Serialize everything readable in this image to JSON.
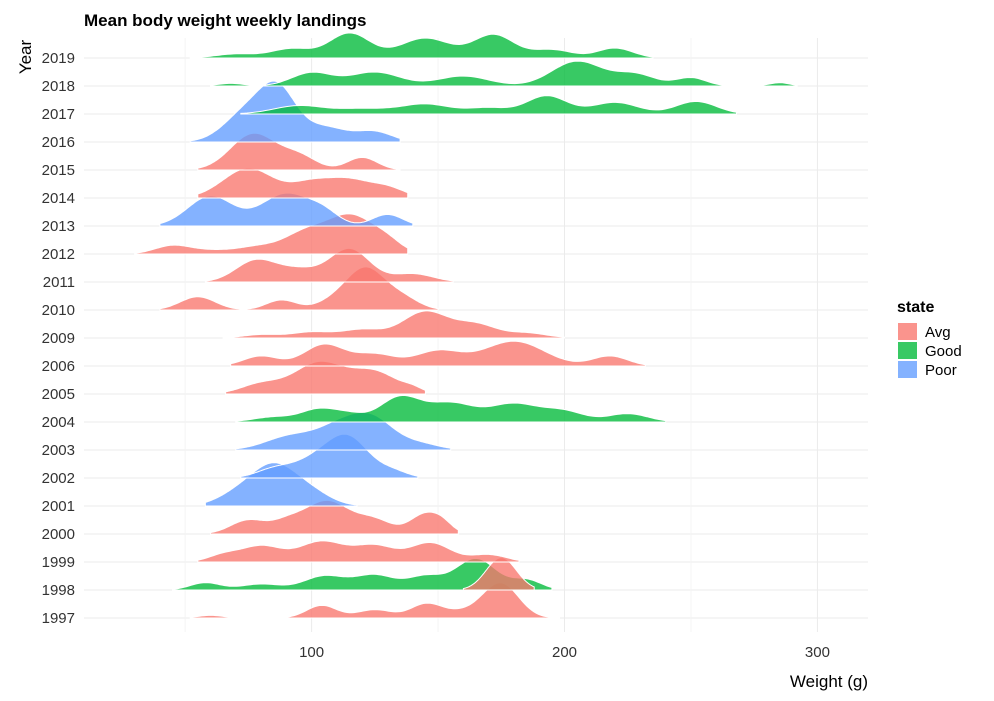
{
  "chart_data": {
    "type": "ridgeline",
    "title": "Mean body weight weekly landings",
    "xlabel": "Weight (g)",
    "ylabel": "Year",
    "xlim": [
      10,
      320
    ],
    "x_ticks": [
      100,
      200,
      300
    ],
    "grid": true,
    "legend": {
      "title": "state",
      "placement": "right",
      "entries": [
        {
          "name": "Avg",
          "color": "#F8766D"
        },
        {
          "name": "Good",
          "color": "#00BA38"
        },
        {
          "name": "Poor",
          "color": "#619CFF"
        }
      ]
    },
    "years": [
      "1997",
      "1998",
      "1999",
      "2000",
      "2001",
      "2002",
      "2003",
      "2004",
      "2005",
      "2006",
      "2009",
      "2010",
      "2011",
      "2012",
      "2013",
      "2014",
      "2015",
      "2016",
      "2017",
      "2018",
      "2019"
    ],
    "ridges": [
      {
        "year": "1997",
        "state": "Avg",
        "min": 52,
        "max": 198,
        "peaks": [
          [
            60,
            0.08,
            5
          ],
          [
            104,
            0.38,
            6
          ],
          [
            125,
            0.25,
            7
          ],
          [
            145,
            0.38,
            6
          ],
          [
            175,
            1.0,
            7
          ],
          [
            160,
            0.2,
            10
          ]
        ]
      },
      {
        "year": "1998",
        "state": "Good",
        "min": 45,
        "max": 195,
        "peaks": [
          [
            58,
            0.22,
            6
          ],
          [
            80,
            0.18,
            8
          ],
          [
            105,
            0.42,
            8
          ],
          [
            125,
            0.45,
            8
          ],
          [
            145,
            0.4,
            7
          ],
          [
            165,
            0.95,
            8
          ],
          [
            185,
            0.3,
            6
          ]
        ]
      },
      {
        "year": "1998",
        "state": "Avg",
        "min": 160,
        "max": 188,
        "peaks": [
          [
            175,
            0.98,
            6
          ]
        ]
      },
      {
        "year": "1999",
        "state": "Avg",
        "min": 55,
        "max": 182,
        "peaks": [
          [
            65,
            0.2,
            6
          ],
          [
            80,
            0.48,
            8
          ],
          [
            104,
            0.62,
            9
          ],
          [
            125,
            0.48,
            8
          ],
          [
            147,
            0.58,
            8
          ],
          [
            170,
            0.22,
            7
          ]
        ]
      },
      {
        "year": "2000",
        "state": "Avg",
        "min": 60,
        "max": 158,
        "peaks": [
          [
            75,
            0.42,
            7
          ],
          [
            90,
            0.3,
            6
          ],
          [
            106,
            1.0,
            9
          ],
          [
            125,
            0.4,
            7
          ],
          [
            145,
            0.6,
            6
          ],
          [
            152,
            0.2,
            4
          ]
        ]
      },
      {
        "year": "2001",
        "state": "Poor",
        "min": 58,
        "max": 118,
        "peaks": [
          [
            70,
            0.3,
            8
          ],
          [
            85,
            1.2,
            9
          ],
          [
            100,
            0.35,
            8
          ]
        ]
      },
      {
        "year": "2002",
        "state": "Poor",
        "min": 72,
        "max": 142,
        "peaks": [
          [
            85,
            0.25,
            7
          ],
          [
            102,
            0.55,
            9
          ],
          [
            115,
            1.1,
            8
          ],
          [
            132,
            0.2,
            6
          ]
        ]
      },
      {
        "year": "2003",
        "state": "Poor",
        "min": 70,
        "max": 155,
        "peaks": [
          [
            92,
            0.42,
            10
          ],
          [
            112,
            0.72,
            9
          ],
          [
            125,
            0.78,
            8
          ],
          [
            142,
            0.2,
            8
          ]
        ]
      },
      {
        "year": "2004",
        "state": "Good",
        "min": 70,
        "max": 240,
        "peaks": [
          [
            85,
            0.15,
            8
          ],
          [
            103,
            0.38,
            7
          ],
          [
            115,
            0.2,
            6
          ],
          [
            135,
            0.75,
            8
          ],
          [
            155,
            0.55,
            9
          ],
          [
            180,
            0.55,
            10
          ],
          [
            200,
            0.3,
            8
          ],
          [
            225,
            0.25,
            8
          ]
        ]
      },
      {
        "year": "2005",
        "state": "Avg",
        "min": 66,
        "max": 145,
        "peaks": [
          [
            80,
            0.3,
            8
          ],
          [
            103,
            0.95,
            10
          ],
          [
            125,
            0.65,
            9
          ],
          [
            140,
            0.12,
            4
          ]
        ]
      },
      {
        "year": "2006",
        "state": "Avg",
        "min": 68,
        "max": 232,
        "peaks": [
          [
            80,
            0.3,
            7
          ],
          [
            105,
            0.65,
            8
          ],
          [
            125,
            0.35,
            8
          ],
          [
            150,
            0.45,
            9
          ],
          [
            180,
            0.75,
            12
          ],
          [
            218,
            0.3,
            7
          ]
        ]
      },
      {
        "year": "2009",
        "state": "Avg",
        "min": 65,
        "max": 200,
        "peaks": [
          [
            80,
            0.1,
            7
          ],
          [
            100,
            0.18,
            8
          ],
          [
            120,
            0.25,
            8
          ],
          [
            145,
            0.8,
            9
          ],
          [
            165,
            0.4,
            8
          ],
          [
            185,
            0.15,
            8
          ]
        ]
      },
      {
        "year": "2010",
        "state": "Avg",
        "min": 40,
        "max": 150,
        "peaks": [
          [
            55,
            0.4,
            7
          ],
          [
            88,
            0.3,
            6
          ],
          [
            112,
            0.4,
            8
          ],
          [
            122,
            1.05,
            7
          ],
          [
            135,
            0.4,
            7
          ]
        ]
      },
      {
        "year": "2011",
        "state": "Avg",
        "min": 58,
        "max": 156,
        "peaks": [
          [
            78,
            0.65,
            8
          ],
          [
            95,
            0.35,
            8
          ],
          [
            115,
            1.0,
            8
          ],
          [
            140,
            0.25,
            8
          ]
        ]
      },
      {
        "year": "2012",
        "state": "Avg",
        "min": 30,
        "max": 138,
        "peaks": [
          [
            45,
            0.25,
            7
          ],
          [
            60,
            0.1,
            8
          ],
          [
            78,
            0.2,
            8
          ],
          [
            98,
            0.65,
            9
          ],
          [
            116,
            1.1,
            9
          ],
          [
            130,
            0.3,
            6
          ]
        ]
      },
      {
        "year": "2013",
        "state": "Poor",
        "min": 40,
        "max": 140,
        "peaks": [
          [
            60,
            0.9,
            9
          ],
          [
            90,
            0.98,
            10
          ],
          [
            105,
            0.3,
            6
          ],
          [
            130,
            0.35,
            6
          ]
        ]
      },
      {
        "year": "2014",
        "state": "Avg",
        "min": 55,
        "max": 138,
        "peaks": [
          [
            75,
            0.9,
            10
          ],
          [
            100,
            0.45,
            8
          ],
          [
            115,
            0.5,
            8
          ],
          [
            130,
            0.3,
            7
          ]
        ]
      },
      {
        "year": "2015",
        "state": "Avg",
        "min": 55,
        "max": 135,
        "peaks": [
          [
            77,
            1.1,
            9
          ],
          [
            95,
            0.4,
            7
          ],
          [
            120,
            0.38,
            6
          ]
        ]
      },
      {
        "year": "2016",
        "state": "Poor",
        "min": 52,
        "max": 135,
        "peaks": [
          [
            75,
            0.95,
            9
          ],
          [
            87,
            1.35,
            7
          ],
          [
            105,
            0.45,
            9
          ],
          [
            125,
            0.3,
            7
          ]
        ]
      },
      {
        "year": "2017",
        "state": "Good",
        "min": 72,
        "max": 268,
        "peaks": [
          [
            95,
            0.25,
            10
          ],
          [
            120,
            0.15,
            10
          ],
          [
            145,
            0.3,
            10
          ],
          [
            170,
            0.18,
            8
          ],
          [
            193,
            0.55,
            8
          ],
          [
            220,
            0.35,
            9
          ],
          [
            252,
            0.38,
            8
          ]
        ]
      },
      {
        "year": "2018",
        "state": "Good",
        "min": 60,
        "max": 292,
        "peaks": [
          [
            68,
            0.08,
            5
          ],
          [
            100,
            0.4,
            8
          ],
          [
            125,
            0.42,
            10
          ],
          [
            160,
            0.3,
            10
          ],
          [
            205,
            0.75,
            10
          ],
          [
            228,
            0.35,
            8
          ],
          [
            250,
            0.25,
            6
          ],
          [
            285,
            0.1,
            4
          ]
        ]
      },
      {
        "year": "2019",
        "state": "Good",
        "min": 52,
        "max": 235,
        "peaks": [
          [
            70,
            0.12,
            8
          ],
          [
            92,
            0.28,
            8
          ],
          [
            115,
            0.75,
            8
          ],
          [
            145,
            0.6,
            10
          ],
          [
            172,
            0.7,
            8
          ],
          [
            195,
            0.25,
            8
          ],
          [
            220,
            0.3,
            7
          ]
        ]
      }
    ]
  }
}
